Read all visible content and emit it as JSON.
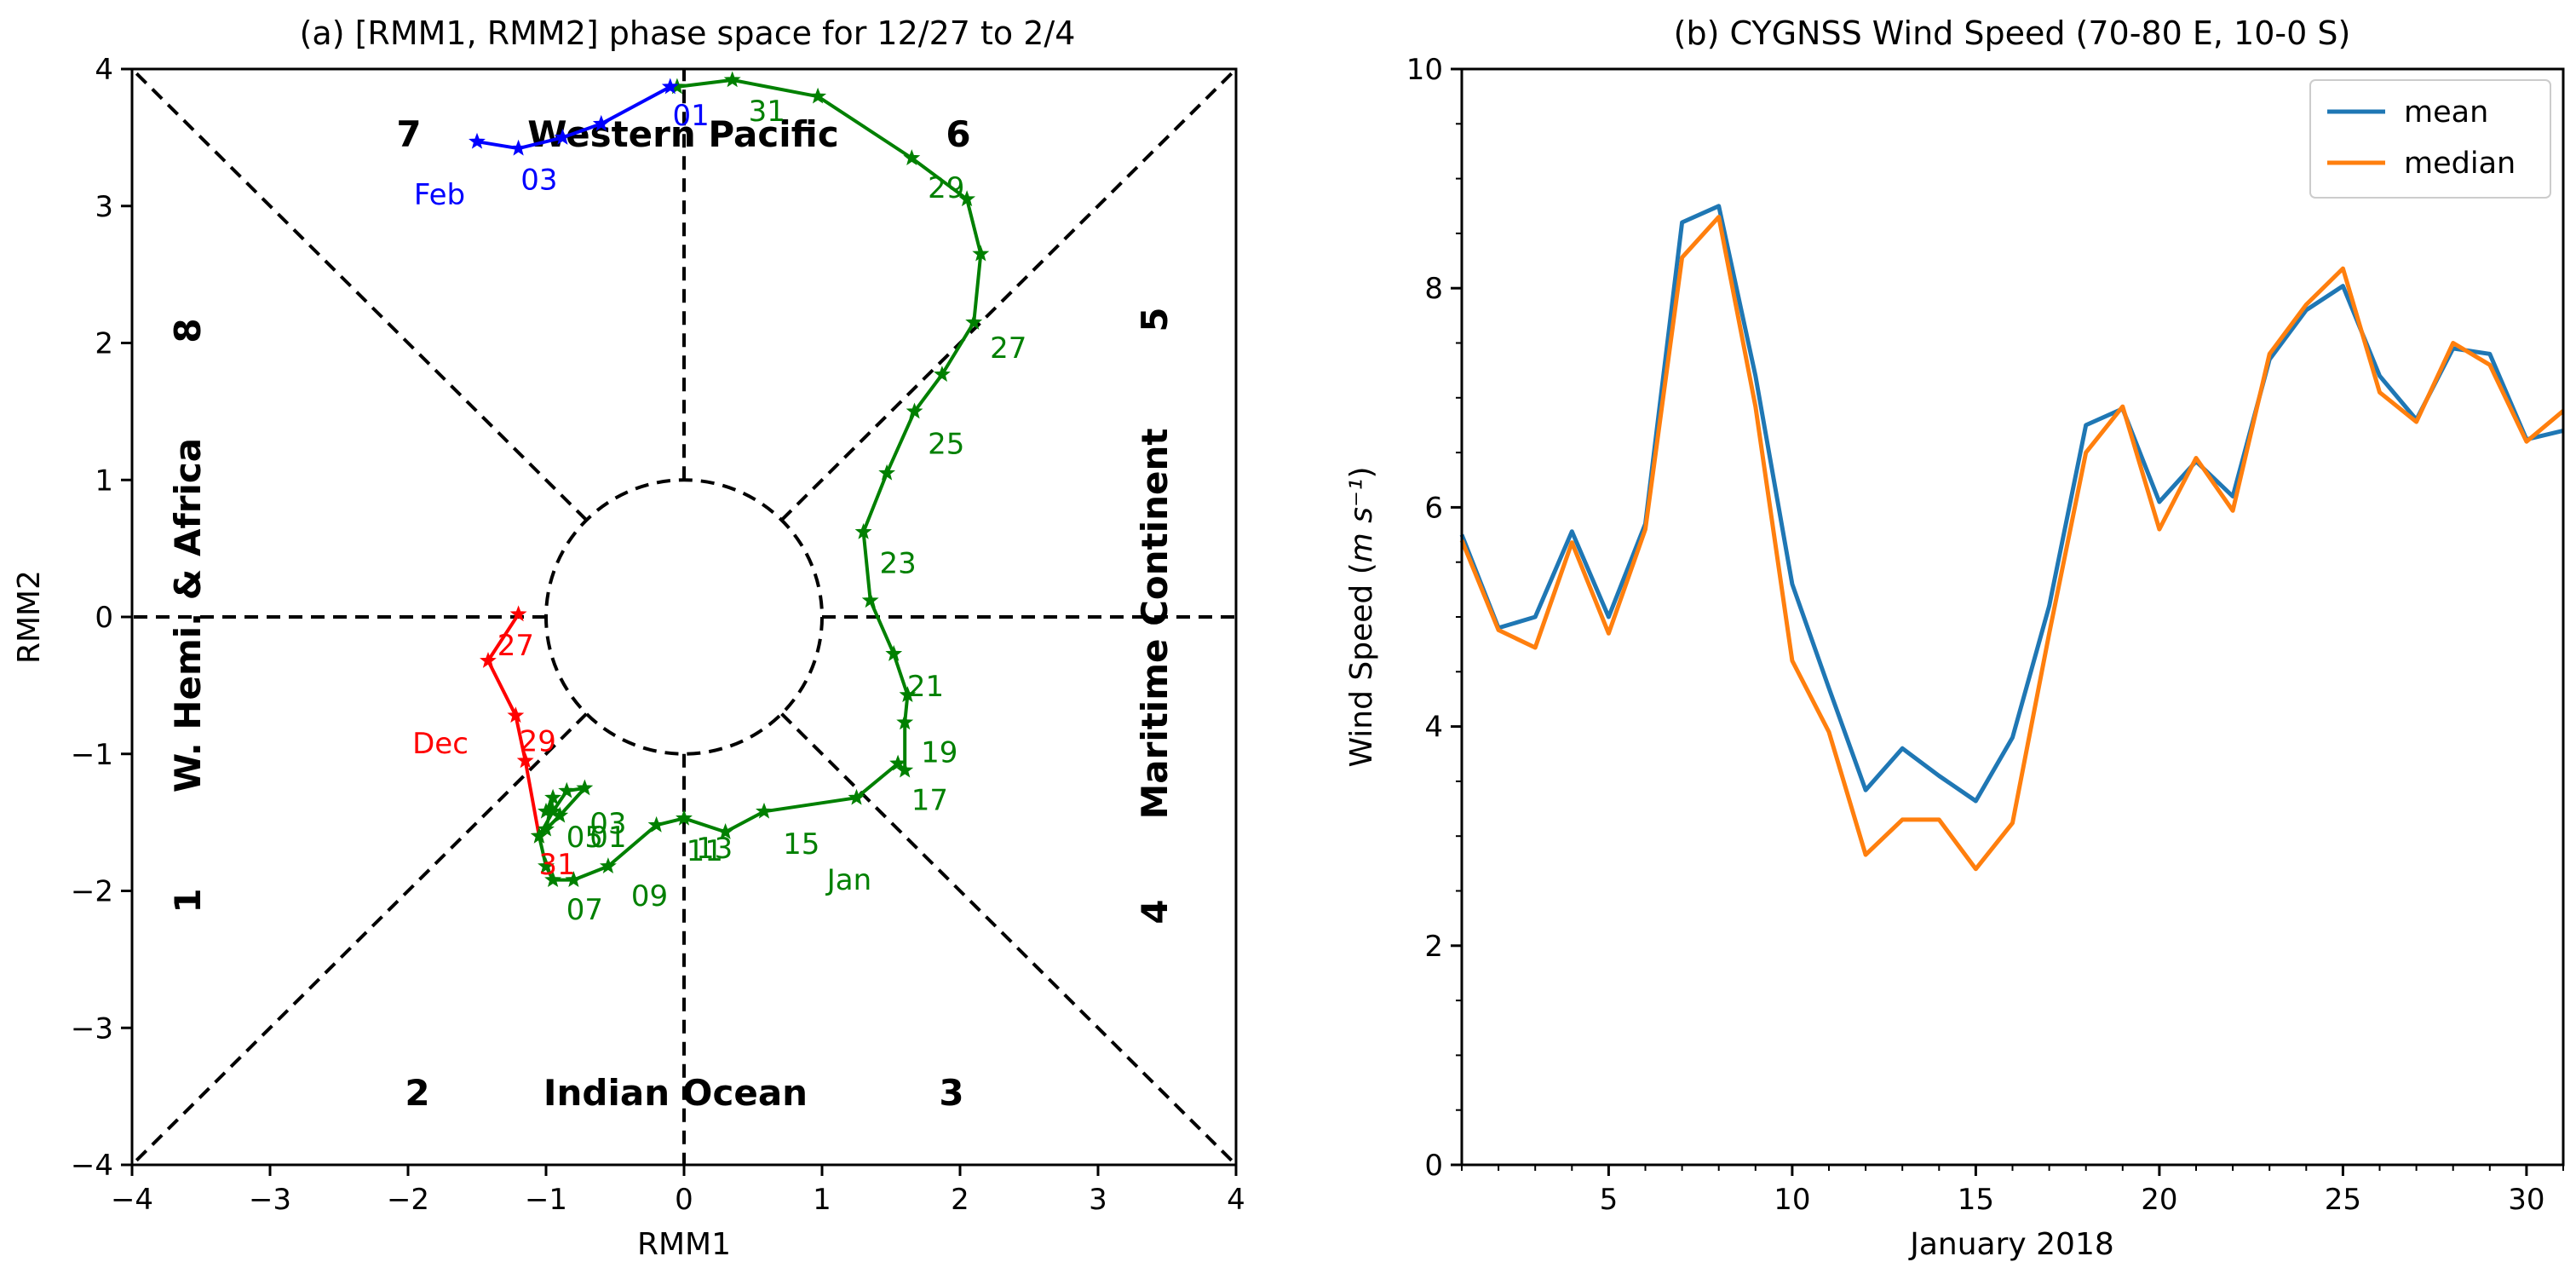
{
  "chart_data": [
    {
      "type": "line",
      "title": "(a) [RMM1, RMM2] phase space for 12/27 to 2/4",
      "xlabel": "RMM1",
      "ylabel": "RMM2",
      "xlim": [
        -4,
        4
      ],
      "ylim": [
        -4,
        4
      ],
      "xticks": [
        "−4",
        "−3",
        "−2",
        "−1",
        "0",
        "1",
        "2",
        "3",
        "4"
      ],
      "yticks": [
        "−4",
        "−3",
        "−2",
        "−1",
        "0",
        "1",
        "2",
        "3",
        "4"
      ],
      "grid": false,
      "phase_labels": {
        "p1": "1",
        "p2": "2",
        "p3": "3",
        "p4": "4",
        "p5": "5",
        "p6": "6",
        "p7": "7",
        "p8": "8",
        "indian_ocean": "Indian Ocean",
        "western_pacific": "Western Pacific",
        "w_hemi_africa": "W. Hemi. & Africa",
        "maritime_continent": "Maritime Continent"
      },
      "series": [
        {
          "name": "Dec",
          "color": "#ff0000",
          "month_label": "Dec",
          "points": [
            [
              -1.2,
              0.02
            ],
            [
              -1.42,
              -0.32
            ],
            [
              -1.22,
              -0.72
            ],
            [
              -1.15,
              -1.05
            ],
            [
              -1.05,
              -1.6
            ]
          ],
          "day_labels": [
            {
              "text": "27",
              "at": [
                -1.22,
                -0.22
              ]
            },
            {
              "text": "29",
              "at": [
                -1.06,
                -0.92
              ]
            },
            {
              "text": "31",
              "at": [
                -0.92,
                -1.82
              ]
            }
          ]
        },
        {
          "name": "Jan",
          "color": "#008000",
          "month_label": "Jan",
          "points": [
            [
              -1.05,
              -1.6
            ],
            [
              -1.0,
              -1.82
            ],
            [
              -0.95,
              -1.92
            ],
            [
              -0.8,
              -1.92
            ],
            [
              -0.55,
              -1.82
            ],
            [
              -0.2,
              -1.52
            ],
            [
              0.0,
              -1.47
            ],
            [
              0.3,
              -1.57
            ],
            [
              0.58,
              -1.42
            ],
            [
              1.25,
              -1.32
            ],
            [
              1.55,
              -1.07
            ],
            [
              1.6,
              -1.12
            ],
            [
              1.6,
              -0.77
            ],
            [
              1.62,
              -0.57
            ],
            [
              1.52,
              -0.27
            ],
            [
              1.35,
              0.12
            ],
            [
              1.3,
              0.62
            ],
            [
              1.47,
              1.05
            ],
            [
              1.67,
              1.5
            ],
            [
              1.87,
              1.77
            ],
            [
              2.1,
              2.15
            ],
            [
              2.15,
              2.65
            ],
            [
              2.05,
              3.05
            ],
            [
              1.65,
              3.35
            ],
            [
              0.97,
              3.8
            ],
            [
              0.35,
              3.92
            ],
            [
              -0.05,
              3.87
            ]
          ],
          "loop_points": [
            [
              -1.05,
              -1.6
            ],
            [
              -0.95,
              -1.42
            ],
            [
              -0.85,
              -1.27
            ],
            [
              -0.72,
              -1.25
            ],
            [
              -0.9,
              -1.45
            ],
            [
              -1.0,
              -1.55
            ],
            [
              -0.95,
              -1.32
            ],
            [
              -1.0,
              -1.42
            ]
          ],
          "day_labels": [
            {
              "text": "01",
              "at": [
                -0.55,
                -1.62
              ]
            },
            {
              "text": "03",
              "at": [
                -0.55,
                -1.52
              ]
            },
            {
              "text": "05",
              "at": [
                -0.72,
                -1.62
              ]
            },
            {
              "text": "07",
              "at": [
                -0.72,
                -2.15
              ]
            },
            {
              "text": "09",
              "at": [
                -0.25,
                -2.05
              ]
            },
            {
              "text": "11",
              "at": [
                0.15,
                -1.72
              ]
            },
            {
              "text": "13",
              "at": [
                0.22,
                -1.7
              ]
            },
            {
              "text": "15",
              "at": [
                0.85,
                -1.67
              ]
            },
            {
              "text": "17",
              "at": [
                1.78,
                -1.35
              ]
            },
            {
              "text": "19",
              "at": [
                1.85,
                -1.0
              ]
            },
            {
              "text": "21",
              "at": [
                1.75,
                -0.52
              ]
            },
            {
              "text": "23",
              "at": [
                1.55,
                0.38
              ]
            },
            {
              "text": "25",
              "at": [
                1.9,
                1.25
              ]
            },
            {
              "text": "27",
              "at": [
                2.35,
                1.95
              ]
            },
            {
              "text": "29",
              "at": [
                1.9,
                3.12
              ]
            },
            {
              "text": "31",
              "at": [
                0.6,
                3.68
              ]
            }
          ]
        },
        {
          "name": "Feb",
          "color": "#0000ff",
          "month_label": "Feb",
          "points": [
            [
              -0.1,
              3.87
            ],
            [
              -0.6,
              3.6
            ],
            [
              -0.88,
              3.5
            ],
            [
              -1.2,
              3.42
            ],
            [
              -1.5,
              3.47
            ]
          ],
          "day_labels": [
            {
              "text": "01",
              "at": [
                0.05,
                3.65
              ]
            },
            {
              "text": "03",
              "at": [
                -1.05,
                3.18
              ]
            }
          ]
        }
      ]
    },
    {
      "type": "line",
      "title": "(b) CYGNSS Wind Speed (70-80 E, 10-0 S)",
      "xlabel": "January 2018",
      "ylabel": "Wind Speed (m s⁻¹)",
      "xlim": [
        1,
        31
      ],
      "ylim": [
        0,
        10
      ],
      "xticks": [
        5,
        10,
        15,
        20,
        25,
        30
      ],
      "yticks": [
        0,
        2,
        4,
        6,
        8,
        10
      ],
      "grid": false,
      "legend": "top-right",
      "x": [
        1,
        2,
        3,
        4,
        5,
        6,
        7,
        8,
        9,
        10,
        11,
        12,
        13,
        14,
        15,
        16,
        17,
        18,
        19,
        20,
        21,
        22,
        23,
        24,
        25,
        26,
        27,
        28,
        29,
        30,
        31
      ],
      "series": [
        {
          "name": "mean",
          "color": "#1f77b4",
          "values": [
            5.75,
            4.9,
            5.0,
            5.78,
            5.0,
            5.85,
            8.6,
            8.75,
            7.2,
            5.3,
            4.35,
            3.42,
            3.8,
            3.55,
            3.32,
            3.9,
            5.1,
            6.75,
            6.9,
            6.05,
            6.42,
            6.1,
            7.35,
            7.8,
            8.02,
            7.2,
            6.8,
            7.45,
            7.4,
            6.62,
            6.7
          ]
        },
        {
          "name": "median",
          "color": "#ff7f0e",
          "values": [
            5.7,
            4.88,
            4.72,
            5.68,
            4.85,
            5.8,
            8.28,
            8.65,
            6.92,
            4.6,
            3.95,
            2.83,
            3.15,
            3.15,
            2.7,
            3.12,
            4.85,
            6.5,
            6.92,
            5.8,
            6.45,
            5.97,
            7.4,
            7.85,
            8.18,
            7.05,
            6.78,
            7.5,
            7.3,
            6.6,
            6.88
          ]
        }
      ]
    }
  ]
}
